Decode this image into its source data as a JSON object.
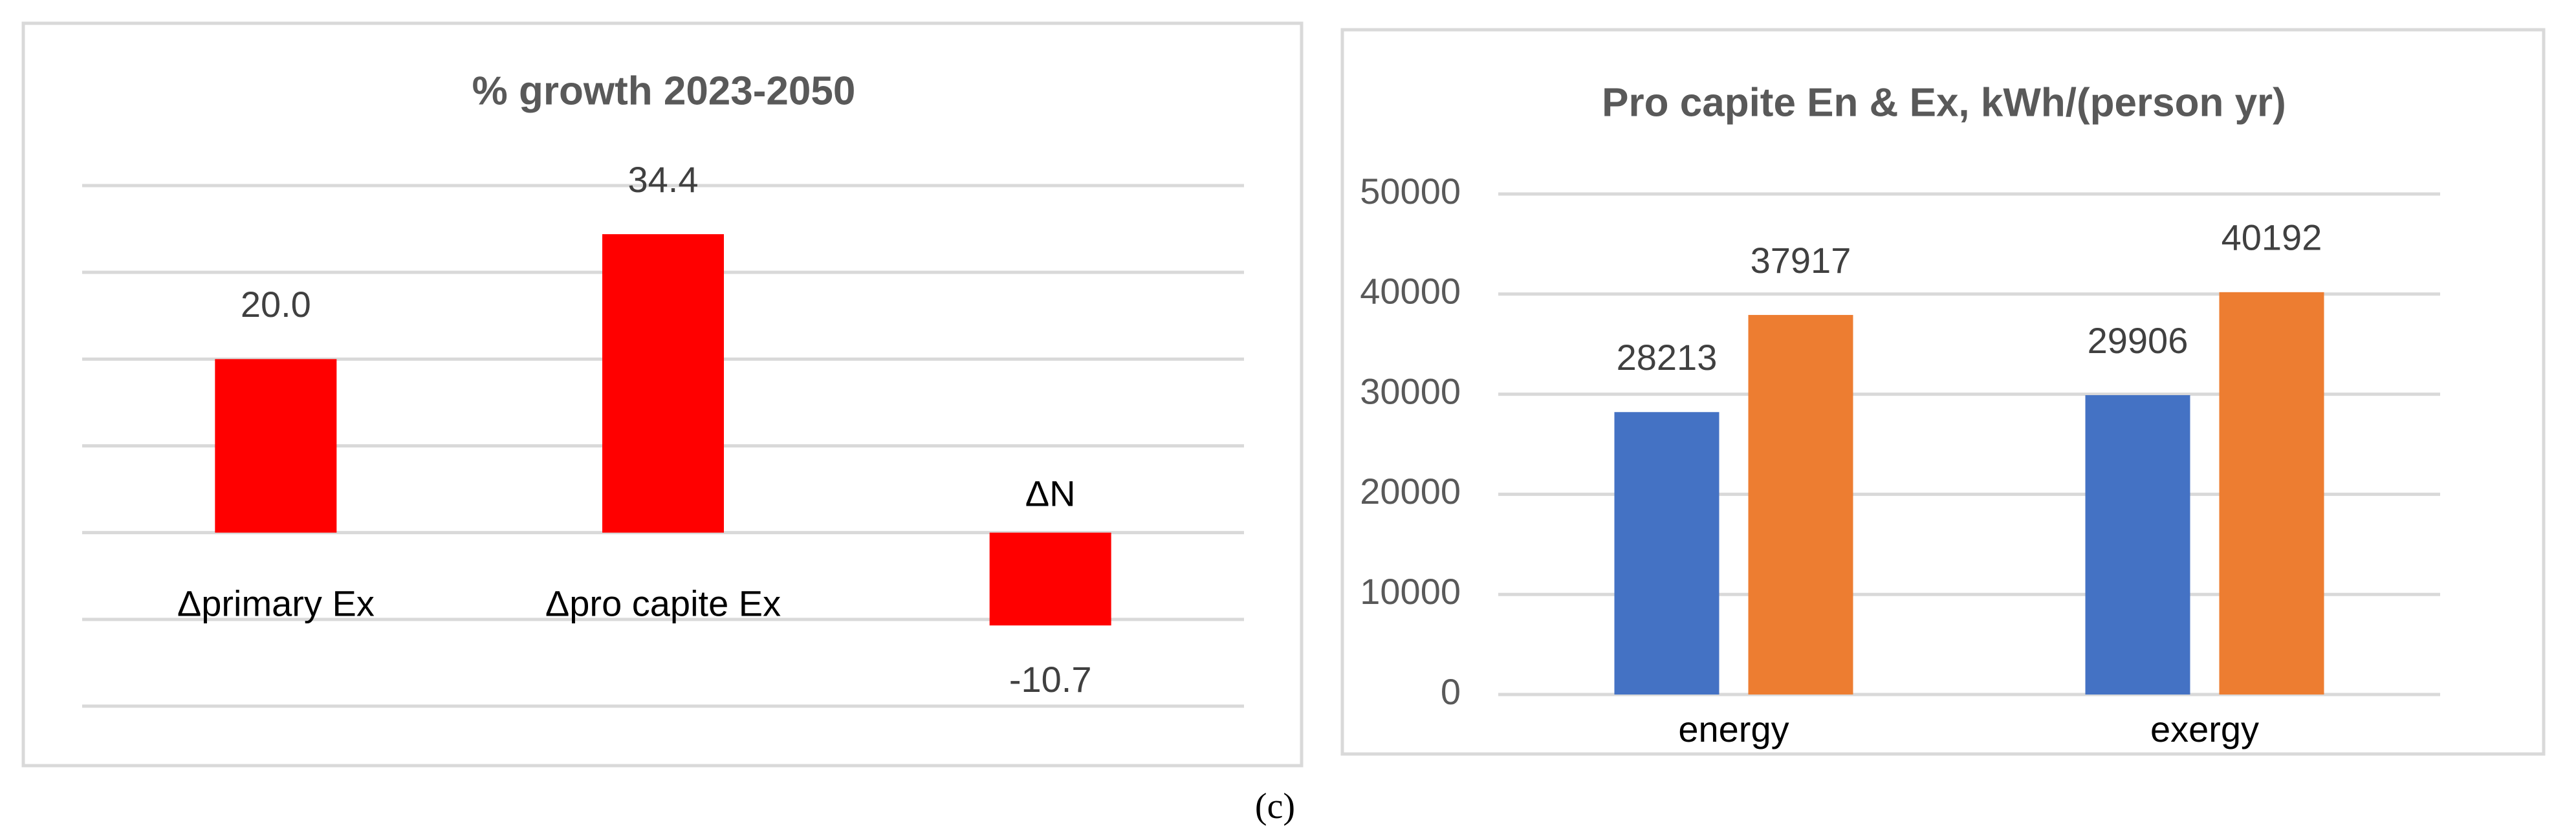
{
  "chart_data": [
    {
      "type": "bar",
      "title": "% growth 2023-2050",
      "categories": [
        "Δprimary Ex",
        "Δpro capite Ex",
        "ΔN"
      ],
      "values": [
        20.0,
        34.4,
        -10.7
      ],
      "value_labels": [
        "20.0",
        "34.4",
        "-10.7"
      ],
      "color": "#ff0000",
      "ylim": [
        -20,
        40
      ],
      "yticks": [
        -20,
        -10,
        0,
        10,
        20,
        30,
        40
      ],
      "grid": true
    },
    {
      "type": "bar",
      "title": "Pro capite En & Ex, kWh/(person yr)",
      "categories": [
        "energy",
        "exergy"
      ],
      "series": [
        {
          "color": "#4472c4",
          "values": [
            28213,
            29906
          ]
        },
        {
          "color": "#ed7d31",
          "values": [
            37917,
            40192
          ]
        }
      ],
      "ylim": [
        0,
        50000
      ],
      "yticks": [
        0,
        10000,
        20000,
        30000,
        40000,
        50000
      ],
      "grid": true
    }
  ],
  "caption": "(c)"
}
